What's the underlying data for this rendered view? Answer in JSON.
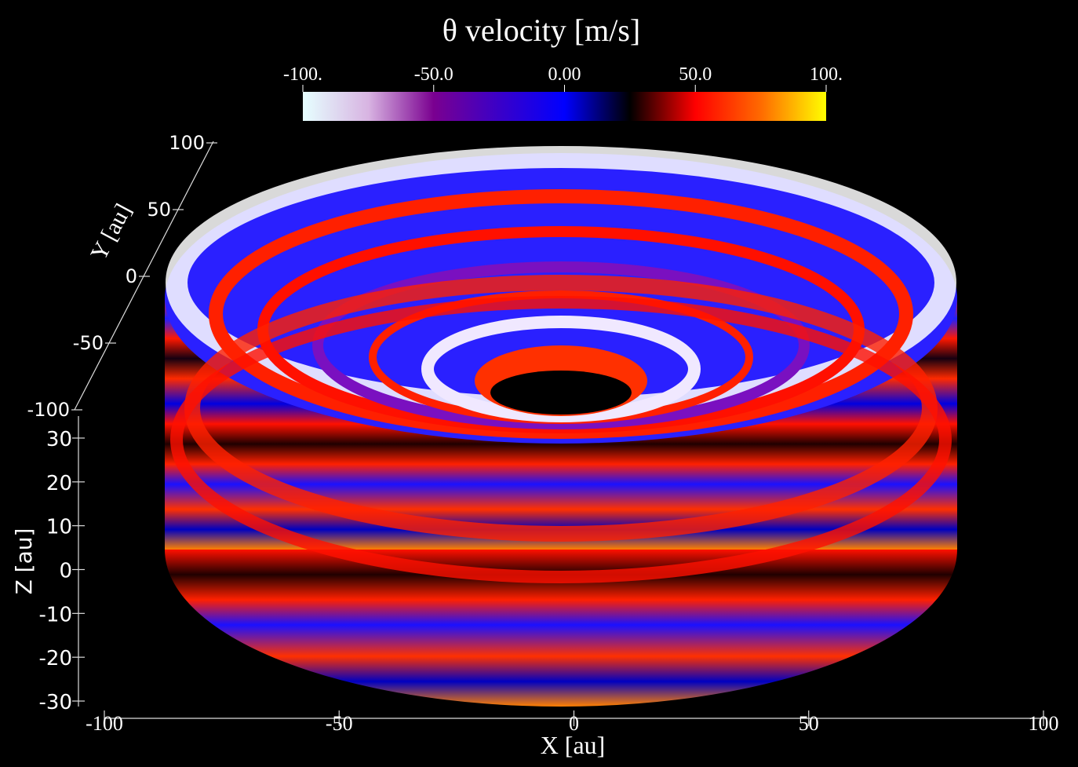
{
  "title": "θ velocity [m/s]",
  "colorbar": {
    "lim": [
      -100,
      100
    ],
    "ticks": [
      {
        "value": -100,
        "label": "-100."
      },
      {
        "value": -50,
        "label": "-50.0"
      },
      {
        "value": 0,
        "label": "0.00"
      },
      {
        "value": 50,
        "label": "50.0"
      },
      {
        "value": 100,
        "label": "100."
      }
    ],
    "colors": [
      "#e6ffff",
      "#d8b4e2",
      "#7a0090",
      "#3a00c8",
      "#0000ff",
      "#000000",
      "#ff0000",
      "#ff6a00",
      "#ffff00"
    ]
  },
  "x_axis": {
    "label": "X [au]",
    "lim": [
      -100,
      100
    ],
    "ticks": [
      -100,
      -50,
      0,
      50,
      100
    ]
  },
  "y_axis": {
    "label": "Y [au]",
    "lim": [
      -100,
      100
    ],
    "ticks": [
      100,
      50,
      0,
      -50,
      -100
    ]
  },
  "z_axis": {
    "label": "Z [au]",
    "lim": [
      -30,
      30
    ],
    "ticks": [
      30,
      20,
      10,
      0,
      -10,
      -20,
      -30
    ]
  }
}
